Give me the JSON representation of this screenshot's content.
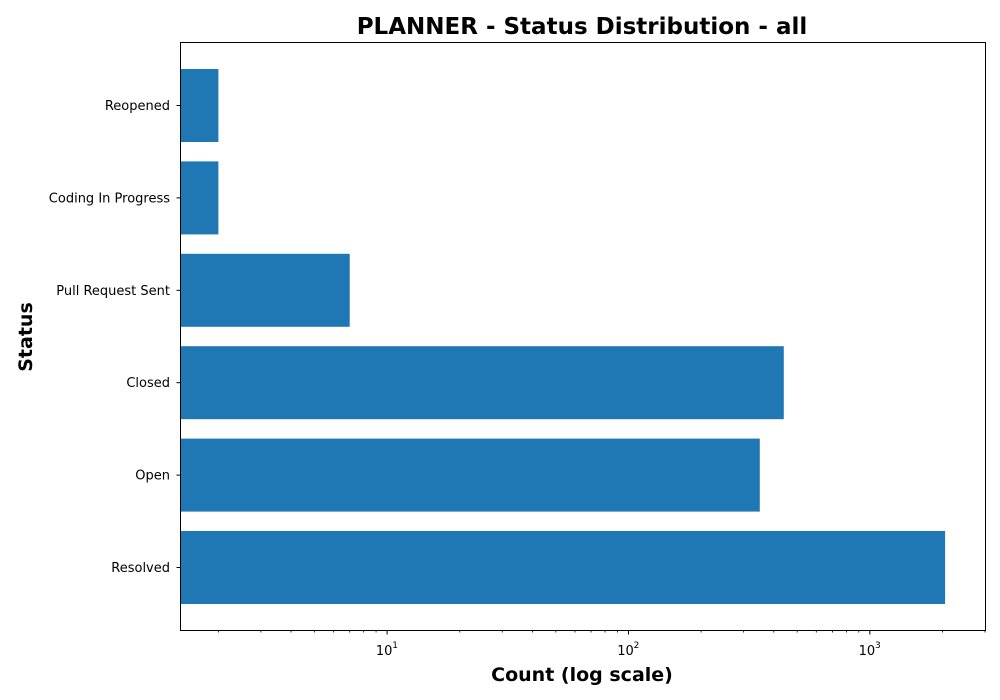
{
  "chart_data": {
    "type": "bar",
    "orientation": "horizontal",
    "title": "PLANNER - Status Distribution - all",
    "xlabel": "Count (log scale)",
    "ylabel": "Status",
    "x_scale": "log",
    "xlim": [
      1.4,
      3000
    ],
    "x_major_ticks": [
      {
        "value": 10,
        "base": "10",
        "exponent": "1"
      },
      {
        "value": 100,
        "base": "10",
        "exponent": "2"
      },
      {
        "value": 1000,
        "base": "10",
        "exponent": "3"
      }
    ],
    "categories": [
      "Resolved",
      "Open",
      "Closed",
      "Pull Request Sent",
      "Coding In Progress",
      "Reopened"
    ],
    "values": [
      2050,
      350,
      440,
      7,
      2,
      2
    ],
    "bar_color": "#1f77b4",
    "grid": false,
    "legend": "none"
  }
}
